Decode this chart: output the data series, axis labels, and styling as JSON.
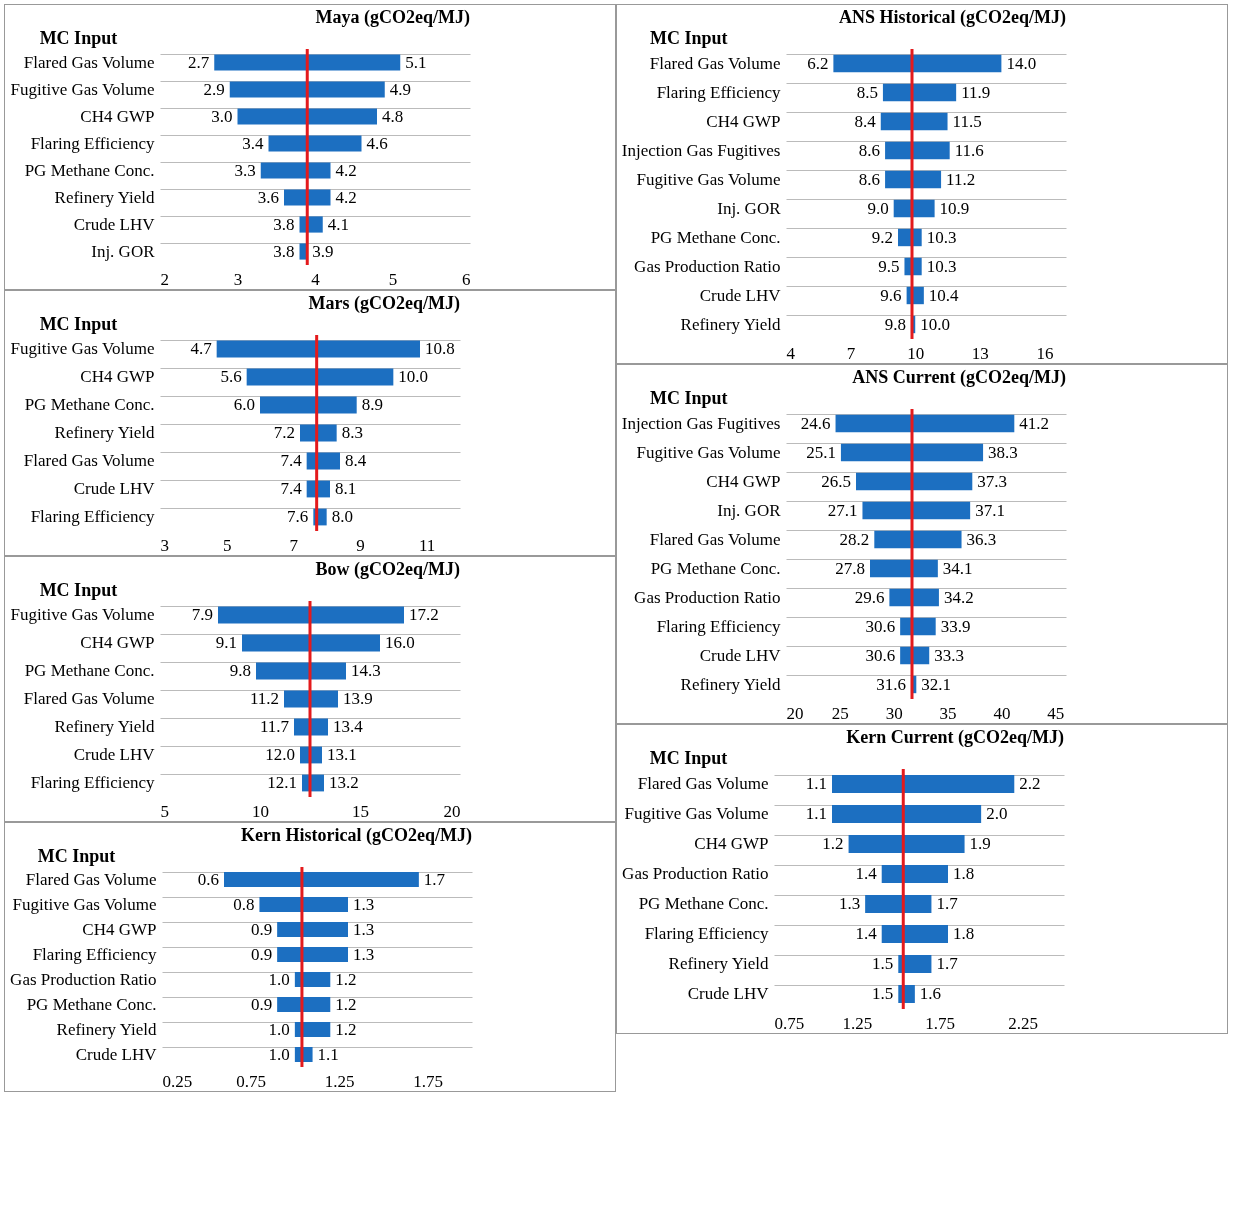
{
  "chart_data": [
    {
      "type": "bar",
      "orientation": "horizontal",
      "title": "Maya (gCO2eq/MJ)",
      "ylabel": "MC Input",
      "color": "#1c6fc1",
      "grid": "y",
      "categories": [
        "Flared Gas Volume",
        "Fugitive Gas Volume",
        "CH4 GWP",
        "Flaring Efficiency",
        "PG Methane Conc.",
        "Refinery Yield",
        "Crude LHV",
        "Inj. GOR"
      ],
      "base": [
        2.7,
        2.9,
        3.0,
        3.4,
        3.3,
        3.6,
        3.8,
        3.8
      ],
      "values": [
        2.4,
        2.0,
        1.8,
        1.2,
        0.9,
        0.6,
        0.3,
        0.1
      ],
      "xlim": [
        2,
        6
      ],
      "xticks": [
        2,
        3,
        4,
        5,
        6
      ],
      "ref_lines": [
        {
          "axis": "x",
          "value": 3.9,
          "color": "#e41a1c"
        }
      ],
      "annotations": [
        {
          "text": "2.7",
          "x": 2.7,
          "y": "Flared Gas Volume"
        },
        {
          "text": "5.1",
          "x": 5.1,
          "y": "Flared Gas Volume"
        },
        {
          "text": "2.9",
          "x": 2.9,
          "y": "Fugitive Gas Volume"
        },
        {
          "text": "4.9",
          "x": 4.9,
          "y": "Fugitive Gas Volume"
        },
        {
          "text": "3.0",
          "x": 3.0,
          "y": "CH4 GWP"
        },
        {
          "text": "4.8",
          "x": 4.8,
          "y": "CH4 GWP"
        },
        {
          "text": "3.4",
          "x": 3.4,
          "y": "Flaring Efficiency"
        },
        {
          "text": "4.6",
          "x": 4.6,
          "y": "Flaring Efficiency"
        },
        {
          "text": "3.3",
          "x": 3.3,
          "y": "PG Methane Conc."
        },
        {
          "text": "4.2",
          "x": 4.2,
          "y": "PG Methane Conc."
        },
        {
          "text": "3.6",
          "x": 3.6,
          "y": "Refinery Yield"
        },
        {
          "text": "4.2",
          "x": 4.2,
          "y": "Refinery Yield"
        },
        {
          "text": "3.8",
          "x": 3.8,
          "y": "Crude LHV"
        },
        {
          "text": "4.1",
          "x": 4.1,
          "y": "Crude LHV"
        },
        {
          "text": "3.8",
          "x": 3.8,
          "y": "Inj. GOR"
        },
        {
          "text": "3.9",
          "x": 3.9,
          "y": "Inj. GOR"
        }
      ]
    },
    {
      "type": "bar",
      "orientation": "horizontal",
      "title": "Mars (gCO2eq/MJ)",
      "ylabel": "MC Input",
      "color": "#1c6fc1",
      "grid": "y",
      "categories": [
        "Fugitive Gas Volume",
        "CH4 GWP",
        "PG Methane Conc.",
        "Refinery Yield",
        "Flared Gas Volume",
        "Crude LHV",
        "Flaring Efficiency"
      ],
      "base": [
        4.7,
        5.6,
        6.0,
        7.2,
        7.4,
        7.4,
        7.6
      ],
      "values": [
        6.1,
        4.4,
        2.9,
        1.1,
        1.0,
        0.7,
        0.4
      ],
      "xlim": [
        3,
        12
      ],
      "xticks": [
        3,
        5,
        7,
        9,
        11
      ],
      "ref_lines": [
        {
          "axis": "x",
          "value": 7.7,
          "color": "#e41a1c"
        }
      ],
      "annotations": [
        {
          "text": "4.7",
          "x": 4.7,
          "y": "Fugitive Gas Volume"
        },
        {
          "text": "10.8",
          "x": 10.8,
          "y": "Fugitive Gas Volume"
        },
        {
          "text": "5.6",
          "x": 5.6,
          "y": "CH4 GWP"
        },
        {
          "text": "10.0",
          "x": 10.0,
          "y": "CH4 GWP"
        },
        {
          "text": "6.0",
          "x": 6.0,
          "y": "PG Methane Conc."
        },
        {
          "text": "8.9",
          "x": 8.9,
          "y": "PG Methane Conc."
        },
        {
          "text": "7.2",
          "x": 7.2,
          "y": "Refinery Yield"
        },
        {
          "text": "8.3",
          "x": 8.3,
          "y": "Refinery Yield"
        },
        {
          "text": "7.4",
          "x": 7.4,
          "y": "Flared Gas Volume"
        },
        {
          "text": "8.4",
          "x": 8.4,
          "y": "Flared Gas Volume"
        },
        {
          "text": "7.4",
          "x": 7.4,
          "y": "Crude LHV"
        },
        {
          "text": "8.1",
          "x": 8.1,
          "y": "Crude LHV"
        },
        {
          "text": "7.6",
          "x": 7.6,
          "y": "Flaring Efficiency"
        },
        {
          "text": "8.0",
          "x": 8.0,
          "y": "Flaring Efficiency"
        }
      ]
    },
    {
      "type": "bar",
      "orientation": "horizontal",
      "title": "Bow (gCO2eq/MJ)",
      "ylabel": "MC Input",
      "color": "#1c6fc1",
      "grid": "y",
      "categories": [
        "Fugitive Gas Volume",
        "CH4 GWP",
        "PG Methane Conc.",
        "Flared Gas Volume",
        "Refinery Yield",
        "Crude LHV",
        "Flaring Efficiency"
      ],
      "base": [
        7.9,
        9.1,
        9.8,
        11.2,
        11.7,
        12.0,
        12.1
      ],
      "values": [
        9.3,
        6.9,
        4.5,
        2.7,
        1.7,
        1.1,
        1.1
      ],
      "xlim": [
        5,
        20
      ],
      "xticks": [
        5,
        10,
        15,
        20
      ],
      "ref_lines": [
        {
          "axis": "x",
          "value": 12.5,
          "color": "#e41a1c"
        }
      ],
      "annotations": [
        {
          "text": "7.9",
          "x": 7.9,
          "y": "Fugitive Gas Volume"
        },
        {
          "text": "17.2",
          "x": 17.2,
          "y": "Fugitive Gas Volume"
        },
        {
          "text": "9.1",
          "x": 9.1,
          "y": "CH4 GWP"
        },
        {
          "text": "16.0",
          "x": 16.0,
          "y": "CH4 GWP"
        },
        {
          "text": "9.8",
          "x": 9.8,
          "y": "PG Methane Conc."
        },
        {
          "text": "14.3",
          "x": 14.3,
          "y": "PG Methane Conc."
        },
        {
          "text": "11.2",
          "x": 11.2,
          "y": "Flared Gas Volume"
        },
        {
          "text": "13.9",
          "x": 13.9,
          "y": "Flared Gas Volume"
        },
        {
          "text": "11.7",
          "x": 11.7,
          "y": "Refinery Yield"
        },
        {
          "text": "13.4",
          "x": 13.4,
          "y": "Refinery Yield"
        },
        {
          "text": "12.0",
          "x": 12.0,
          "y": "Crude LHV"
        },
        {
          "text": "13.1",
          "x": 13.1,
          "y": "Crude LHV"
        },
        {
          "text": "12.1",
          "x": 12.1,
          "y": "Flaring Efficiency"
        },
        {
          "text": "13.2",
          "x": 13.2,
          "y": "Flaring Efficiency"
        }
      ]
    },
    {
      "type": "bar",
      "orientation": "horizontal",
      "title": "Kern Historical (gCO2eq/MJ)",
      "ylabel": "MC Input",
      "color": "#1c6fc1",
      "grid": "y",
      "categories": [
        "Flared Gas Volume",
        "Fugitive Gas Volume",
        "CH4 GWP",
        "Flaring Efficiency",
        "Gas Production Ratio",
        "PG Methane Conc.",
        "Refinery Yield",
        "Crude LHV"
      ],
      "base": [
        0.6,
        0.8,
        0.9,
        0.9,
        1.0,
        0.9,
        1.0,
        1.0
      ],
      "values": [
        1.1,
        0.5,
        0.4,
        0.4,
        0.2,
        0.3,
        0.2,
        0.1
      ],
      "xlim": [
        0.25,
        2
      ],
      "xticks": [
        0.25,
        0.75,
        1.25,
        1.75
      ],
      "ref_lines": [
        {
          "axis": "x",
          "value": 1.04,
          "color": "#e41a1c"
        }
      ],
      "annotations": [
        {
          "text": "0.6",
          "x": 0.6,
          "y": "Flared Gas Volume"
        },
        {
          "text": "1.7",
          "x": 1.7,
          "y": "Flared Gas Volume"
        },
        {
          "text": "0.8",
          "x": 0.8,
          "y": "Fugitive Gas Volume"
        },
        {
          "text": "1.3",
          "x": 1.3,
          "y": "Fugitive Gas Volume"
        },
        {
          "text": "0.9",
          "x": 0.9,
          "y": "CH4 GWP"
        },
        {
          "text": "1.3",
          "x": 1.3,
          "y": "CH4 GWP"
        },
        {
          "text": "0.9",
          "x": 0.9,
          "y": "Flaring Efficiency"
        },
        {
          "text": "1.3",
          "x": 1.3,
          "y": "Flaring Efficiency"
        },
        {
          "text": "1.0",
          "x": 1.0,
          "y": "Gas Production Ratio"
        },
        {
          "text": "1.2",
          "x": 1.2,
          "y": "Gas Production Ratio"
        },
        {
          "text": "0.9",
          "x": 0.9,
          "y": "PG Methane Conc."
        },
        {
          "text": "1.2",
          "x": 1.2,
          "y": "PG Methane Conc."
        },
        {
          "text": "1.0",
          "x": 1.0,
          "y": "Refinery Yield"
        },
        {
          "text": "1.2",
          "x": 1.2,
          "y": "Refinery Yield"
        },
        {
          "text": "1.0",
          "x": 1.0,
          "y": "Crude LHV"
        },
        {
          "text": "1.1",
          "x": 1.1,
          "y": "Crude LHV"
        }
      ]
    },
    {
      "type": "bar",
      "orientation": "horizontal",
      "title": "ANS Historical (gCO2eq/MJ)",
      "ylabel": "MC Input",
      "color": "#1c6fc1",
      "grid": "y",
      "categories": [
        "Flared Gas Volume",
        "Flaring Efficiency",
        "CH4 GWP",
        "Injection Gas Fugitives",
        "Fugitive Gas Volume",
        "Inj. GOR",
        "PG Methane Conc.",
        "Gas Production Ratio",
        "Crude LHV",
        "Refinery Yield"
      ],
      "base": [
        6.2,
        8.5,
        8.4,
        8.6,
        8.6,
        9.0,
        9.2,
        9.5,
        9.6,
        9.8
      ],
      "values": [
        7.8,
        3.4,
        3.1,
        3.0,
        2.6,
        1.9,
        1.1,
        0.8,
        0.8,
        0.2
      ],
      "xlim": [
        4,
        17
      ],
      "xticks": [
        4,
        7,
        10,
        13,
        16
      ],
      "ref_lines": [
        {
          "axis": "x",
          "value": 9.85,
          "color": "#e41a1c"
        }
      ],
      "annotations": [
        {
          "text": "6.2",
          "x": 6.2,
          "y": "Flared Gas Volume"
        },
        {
          "text": "14.0",
          "x": 14.0,
          "y": "Flared Gas Volume"
        },
        {
          "text": "8.5",
          "x": 8.5,
          "y": "Flaring Efficiency"
        },
        {
          "text": "11.9",
          "x": 11.9,
          "y": "Flaring Efficiency"
        },
        {
          "text": "8.4",
          "x": 8.4,
          "y": "CH4 GWP"
        },
        {
          "text": "11.5",
          "x": 11.5,
          "y": "CH4 GWP"
        },
        {
          "text": "8.6",
          "x": 8.6,
          "y": "Injection Gas Fugitives"
        },
        {
          "text": "11.6",
          "x": 11.6,
          "y": "Injection Gas Fugitives"
        },
        {
          "text": "8.6",
          "x": 8.6,
          "y": "Fugitive Gas Volume"
        },
        {
          "text": "11.2",
          "x": 11.2,
          "y": "Fugitive Gas Volume"
        },
        {
          "text": "9.0",
          "x": 9.0,
          "y": "Inj. GOR"
        },
        {
          "text": "10.9",
          "x": 10.9,
          "y": "Inj. GOR"
        },
        {
          "text": "9.2",
          "x": 9.2,
          "y": "PG Methane Conc."
        },
        {
          "text": "10.3",
          "x": 10.3,
          "y": "PG Methane Conc."
        },
        {
          "text": "9.5",
          "x": 9.5,
          "y": "Gas Production Ratio"
        },
        {
          "text": "10.3",
          "x": 10.3,
          "y": "Gas Production Ratio"
        },
        {
          "text": "9.6",
          "x": 9.6,
          "y": "Crude LHV"
        },
        {
          "text": "10.4",
          "x": 10.4,
          "y": "Crude LHV"
        },
        {
          "text": "9.8",
          "x": 9.8,
          "y": "Refinery Yield"
        },
        {
          "text": "10.0",
          "x": 10.0,
          "y": "Refinery Yield"
        }
      ]
    },
    {
      "type": "bar",
      "orientation": "horizontal",
      "title": "ANS Current (gCO2eq/MJ)",
      "ylabel": "MC Input",
      "color": "#1c6fc1",
      "grid": "y",
      "categories": [
        "Injection Gas Fugitives",
        "Fugitive Gas Volume",
        "CH4 GWP",
        "Inj. GOR",
        "Flared Gas Volume",
        "PG Methane Conc.",
        "Gas Production Ratio",
        "Flaring Efficiency",
        "Crude LHV",
        "Refinery Yield"
      ],
      "base": [
        24.6,
        25.1,
        26.5,
        27.1,
        28.2,
        27.8,
        29.6,
        30.6,
        30.6,
        31.6
      ],
      "values": [
        16.6,
        13.2,
        10.8,
        10.0,
        8.1,
        6.3,
        4.6,
        3.3,
        2.7,
        0.5
      ],
      "xlim": [
        20,
        46
      ],
      "xticks": [
        20,
        25,
        30,
        35,
        40,
        45
      ],
      "ref_lines": [
        {
          "axis": "x",
          "value": 31.7,
          "color": "#e41a1c"
        }
      ],
      "annotations": [
        {
          "text": "24.6",
          "x": 24.6,
          "y": "Injection Gas Fugitives"
        },
        {
          "text": "41.2",
          "x": 41.2,
          "y": "Injection Gas Fugitives"
        },
        {
          "text": "25.1",
          "x": 25.1,
          "y": "Fugitive Gas Volume"
        },
        {
          "text": "38.3",
          "x": 38.3,
          "y": "Fugitive Gas Volume"
        },
        {
          "text": "26.5",
          "x": 26.5,
          "y": "CH4 GWP"
        },
        {
          "text": "37.3",
          "x": 37.3,
          "y": "CH4 GWP"
        },
        {
          "text": "27.1",
          "x": 27.1,
          "y": "Inj. GOR"
        },
        {
          "text": "37.1",
          "x": 37.1,
          "y": "Inj. GOR"
        },
        {
          "text": "28.2",
          "x": 28.2,
          "y": "Flared Gas Volume"
        },
        {
          "text": "36.3",
          "x": 36.3,
          "y": "Flared Gas Volume"
        },
        {
          "text": "27.8",
          "x": 27.8,
          "y": "PG Methane Conc."
        },
        {
          "text": "34.1",
          "x": 34.1,
          "y": "PG Methane Conc."
        },
        {
          "text": "29.6",
          "x": 29.6,
          "y": "Gas Production Ratio"
        },
        {
          "text": "34.2",
          "x": 34.2,
          "y": "Gas Production Ratio"
        },
        {
          "text": "30.6",
          "x": 30.6,
          "y": "Flaring Efficiency"
        },
        {
          "text": "33.9",
          "x": 33.9,
          "y": "Flaring Efficiency"
        },
        {
          "text": "30.6",
          "x": 30.6,
          "y": "Crude LHV"
        },
        {
          "text": "33.3",
          "x": 33.3,
          "y": "Crude LHV"
        },
        {
          "text": "31.6",
          "x": 31.6,
          "y": "Refinery Yield"
        },
        {
          "text": "32.1",
          "x": 32.1,
          "y": "Refinery Yield"
        }
      ]
    },
    {
      "type": "bar",
      "orientation": "horizontal",
      "title": "Kern Current (gCO2eq/MJ)",
      "ylabel": "MC Input",
      "color": "#1c6fc1",
      "grid": "y",
      "categories": [
        "Flared Gas Volume",
        "Fugitive Gas Volume",
        "CH4 GWP",
        "Gas Production Ratio",
        "PG Methane Conc.",
        "Flaring Efficiency",
        "Refinery Yield",
        "Crude LHV"
      ],
      "base": [
        1.1,
        1.1,
        1.2,
        1.4,
        1.3,
        1.4,
        1.5,
        1.5
      ],
      "values": [
        1.1,
        0.9,
        0.7,
        0.4,
        0.4,
        0.4,
        0.2,
        0.1
      ],
      "xlim": [
        0.75,
        2.5
      ],
      "xticks": [
        0.75,
        1.25,
        1.75,
        2.25
      ],
      "ref_lines": [
        {
          "axis": "x",
          "value": 1.53,
          "color": "#e41a1c"
        }
      ],
      "annotations": [
        {
          "text": "1.1",
          "x": 1.1,
          "y": "Flared Gas Volume"
        },
        {
          "text": "2.2",
          "x": 2.2,
          "y": "Flared Gas Volume"
        },
        {
          "text": "1.1",
          "x": 1.1,
          "y": "Fugitive Gas Volume"
        },
        {
          "text": "2.0",
          "x": 2.0,
          "y": "Fugitive Gas Volume"
        },
        {
          "text": "1.2",
          "x": 1.2,
          "y": "CH4 GWP"
        },
        {
          "text": "1.9",
          "x": 1.9,
          "y": "CH4 GWP"
        },
        {
          "text": "1.4",
          "x": 1.4,
          "y": "Gas Production Ratio"
        },
        {
          "text": "1.8",
          "x": 1.8,
          "y": "Gas Production Ratio"
        },
        {
          "text": "1.3",
          "x": 1.3,
          "y": "PG Methane Conc."
        },
        {
          "text": "1.7",
          "x": 1.7,
          "y": "PG Methane Conc."
        },
        {
          "text": "1.4",
          "x": 1.4,
          "y": "Flaring Efficiency"
        },
        {
          "text": "1.8",
          "x": 1.8,
          "y": "Flaring Efficiency"
        },
        {
          "text": "1.5",
          "x": 1.5,
          "y": "Refinery Yield"
        },
        {
          "text": "1.7",
          "x": 1.7,
          "y": "Refinery Yield"
        },
        {
          "text": "1.5",
          "x": 1.5,
          "y": "Crude LHV"
        },
        {
          "text": "1.6",
          "x": 1.6,
          "y": "Crude LHV"
        }
      ]
    }
  ]
}
